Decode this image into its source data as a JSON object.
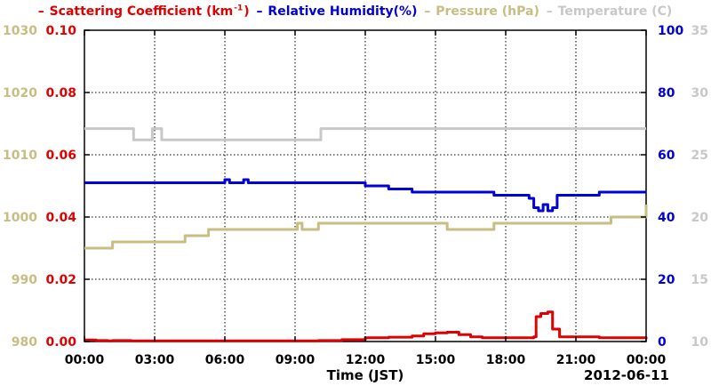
{
  "chart_data": {
    "type": "line",
    "date_label": "2012-06-11",
    "xlabel": "Time (JST)",
    "x_ticks": [
      "00:00",
      "03:00",
      "06:00",
      "09:00",
      "12:00",
      "15:00",
      "18:00",
      "21:00",
      "00:00"
    ],
    "xlim_hours": [
      0,
      24
    ],
    "grid": true,
    "legend_position": "top",
    "axes": [
      {
        "id": "pressure",
        "side": "left-outer",
        "ylim": [
          980,
          1030
        ],
        "ticks": [
          "980",
          "990",
          "1000",
          "1010",
          "1020",
          "1030"
        ],
        "color": "#c8bd82"
      },
      {
        "id": "scattering",
        "side": "left-inner",
        "ylim": [
          0,
          0.1
        ],
        "ticks": [
          "0.00",
          "0.02",
          "0.04",
          "0.06",
          "0.08",
          "0.10"
        ],
        "color": "#e00000"
      },
      {
        "id": "humidity",
        "side": "right-inner",
        "ylim": [
          0,
          100
        ],
        "ticks": [
          "0",
          "20",
          "40",
          "60",
          "80",
          "100"
        ],
        "color": "#0000d8"
      },
      {
        "id": "temperature",
        "side": "right-outer",
        "ylim": [
          10,
          35
        ],
        "ticks": [
          "10",
          "15",
          "20",
          "25",
          "30",
          "35"
        ],
        "color": "#c8c8c8"
      }
    ],
    "series": [
      {
        "name": "Scattering Coefficient (km",
        "name_sup": "-1",
        "name_suffix": ")",
        "axis": "scattering",
        "color": "#e00000",
        "points": [
          [
            0.0,
            0.0005
          ],
          [
            0.5,
            0.0003
          ],
          [
            1.0,
            0.0002
          ],
          [
            1.2,
            0.0003
          ],
          [
            2.0,
            0.0002
          ],
          [
            4.0,
            0.0002
          ],
          [
            6.0,
            0.0002
          ],
          [
            9.0,
            0.0002
          ],
          [
            10.0,
            0.0003
          ],
          [
            11.0,
            0.0006
          ],
          [
            12.0,
            0.0012
          ],
          [
            13.0,
            0.0014
          ],
          [
            14.0,
            0.0018
          ],
          [
            14.5,
            0.0025
          ],
          [
            15.0,
            0.0028
          ],
          [
            15.5,
            0.003
          ],
          [
            16.0,
            0.0022
          ],
          [
            16.5,
            0.0015
          ],
          [
            17.0,
            0.0012
          ],
          [
            18.0,
            0.0012
          ],
          [
            19.0,
            0.0012
          ],
          [
            19.2,
            0.0015
          ],
          [
            19.3,
            0.008
          ],
          [
            19.5,
            0.009
          ],
          [
            19.8,
            0.0095
          ],
          [
            20.0,
            0.004
          ],
          [
            20.3,
            0.0015
          ],
          [
            21.0,
            0.0015
          ],
          [
            22.0,
            0.0012
          ],
          [
            23.0,
            0.0012
          ],
          [
            24.0,
            0.0008
          ]
        ]
      },
      {
        "name": "Relative Humidity(%)",
        "axis": "humidity",
        "color": "#0000d8",
        "points": [
          [
            0.0,
            51
          ],
          [
            5.8,
            51
          ],
          [
            6.0,
            52
          ],
          [
            6.2,
            51
          ],
          [
            6.6,
            51
          ],
          [
            6.8,
            52
          ],
          [
            7.0,
            51
          ],
          [
            10.0,
            51
          ],
          [
            12.0,
            50
          ],
          [
            13.0,
            49
          ],
          [
            14.0,
            48
          ],
          [
            16.0,
            48
          ],
          [
            17.5,
            47
          ],
          [
            19.0,
            46
          ],
          [
            19.2,
            43
          ],
          [
            19.4,
            42
          ],
          [
            19.6,
            44
          ],
          [
            19.8,
            42
          ],
          [
            20.0,
            43
          ],
          [
            20.2,
            47
          ],
          [
            21.0,
            47
          ],
          [
            22.0,
            48
          ],
          [
            24.0,
            48
          ]
        ]
      },
      {
        "name": "Pressure (hPa)",
        "axis": "pressure",
        "color": "#c8bd82",
        "points": [
          [
            0.0,
            995
          ],
          [
            1.0,
            995
          ],
          [
            1.2,
            996
          ],
          [
            4.0,
            996
          ],
          [
            4.3,
            997
          ],
          [
            5.0,
            997
          ],
          [
            5.3,
            998
          ],
          [
            9.0,
            998
          ],
          [
            9.1,
            999
          ],
          [
            9.3,
            998
          ],
          [
            10.0,
            999
          ],
          [
            11.0,
            999
          ],
          [
            12.0,
            999
          ],
          [
            15.0,
            999
          ],
          [
            15.5,
            998
          ],
          [
            17.0,
            998
          ],
          [
            17.5,
            999
          ],
          [
            22.0,
            999
          ],
          [
            22.5,
            1000
          ],
          [
            24.0,
            1002
          ]
        ]
      },
      {
        "name": "Temperature (C)",
        "axis": "temperature",
        "color": "#c8c8c8",
        "points": [
          [
            0.0,
            27.1
          ],
          [
            2.0,
            27.1
          ],
          [
            2.1,
            26.2
          ],
          [
            2.8,
            26.2
          ],
          [
            2.9,
            27.1
          ],
          [
            3.2,
            27.1
          ],
          [
            3.3,
            26.2
          ],
          [
            10.0,
            26.2
          ],
          [
            10.1,
            27.1
          ],
          [
            24.0,
            27.1
          ]
        ]
      }
    ]
  }
}
